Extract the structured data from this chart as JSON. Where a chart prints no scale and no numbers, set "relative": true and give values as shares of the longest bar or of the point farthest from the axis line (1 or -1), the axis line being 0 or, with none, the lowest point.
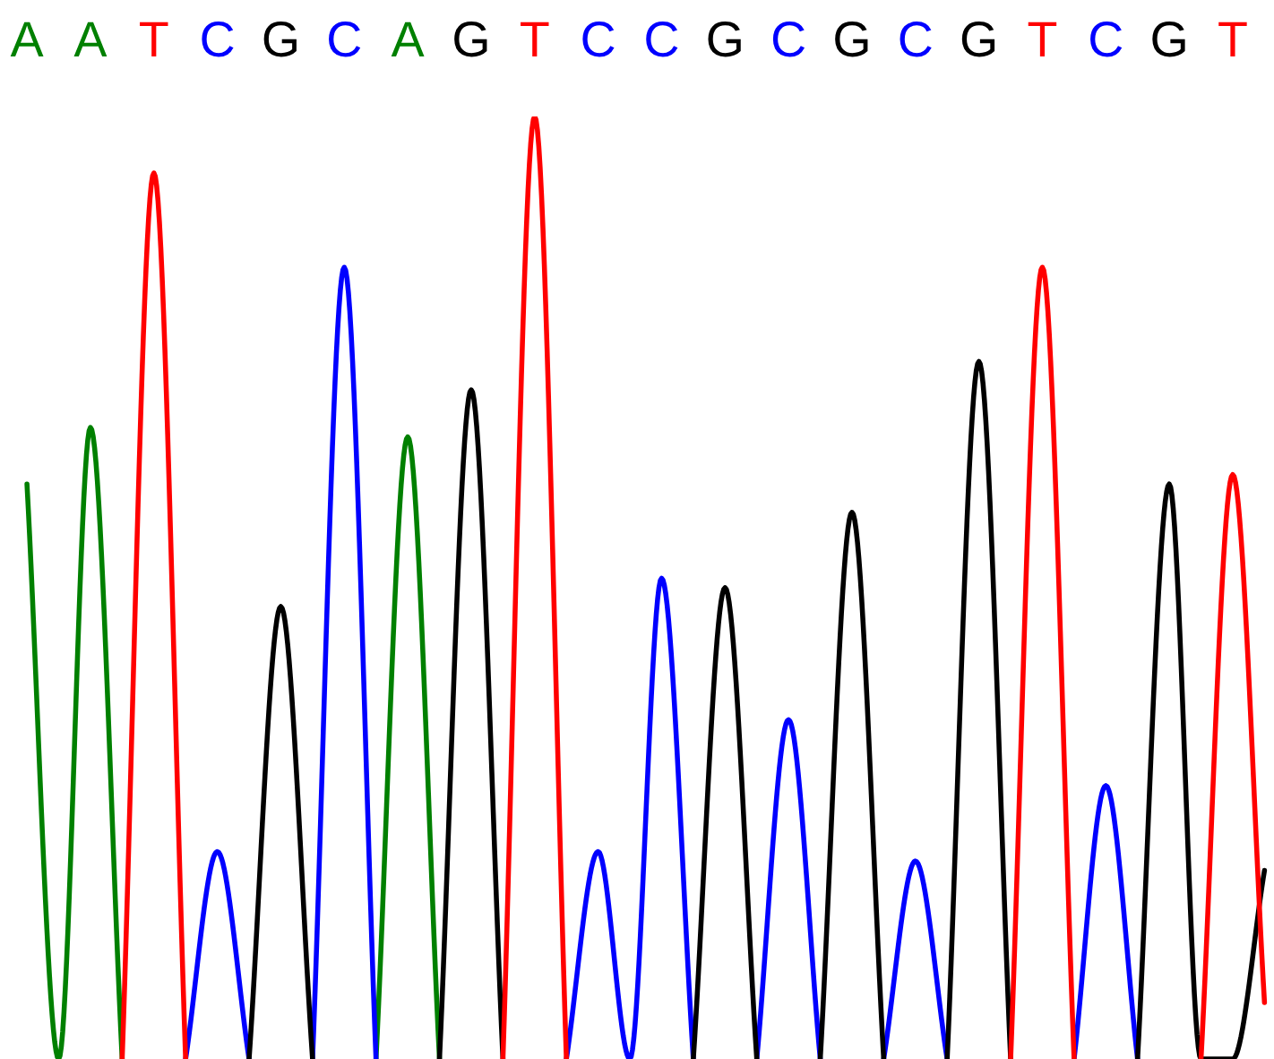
{
  "chart_data": {
    "type": "line",
    "relative": true,
    "categories": [
      "A",
      null,
      "A",
      null,
      "T",
      null,
      "C",
      null,
      "G",
      null,
      "C",
      null,
      "A",
      null,
      "G",
      null,
      "T",
      null,
      "C",
      null,
      "C",
      null,
      "G",
      null,
      "C",
      null,
      "G",
      null,
      "C",
      null,
      "G",
      null,
      "T",
      null,
      "C",
      null,
      "G",
      null,
      "T",
      null
    ],
    "series": [
      {
        "color": "#008000",
        "values": [
          0.61,
          0,
          0.67,
          0,
          null,
          null,
          null,
          null,
          null,
          null,
          null,
          0,
          0.66,
          0,
          null,
          null,
          null,
          null,
          null,
          null,
          null,
          null,
          null,
          null,
          null,
          null,
          null,
          null,
          null,
          null,
          null,
          null,
          null,
          null,
          null,
          null,
          null,
          null,
          null,
          null
        ]
      },
      {
        "color": "#0000ff",
        "values": [
          null,
          null,
          null,
          null,
          null,
          0,
          0.22,
          0,
          null,
          0,
          0.84,
          0,
          null,
          null,
          null,
          null,
          null,
          0,
          0.22,
          0,
          0.51,
          0,
          null,
          0,
          0.36,
          0,
          null,
          0,
          0.21,
          0,
          null,
          null,
          null,
          0,
          0.29,
          0,
          null,
          null,
          null,
          null
        ]
      },
      {
        "color": "#000000",
        "values": [
          null,
          null,
          null,
          null,
          null,
          null,
          null,
          0,
          0.48,
          0,
          null,
          null,
          null,
          0,
          0.71,
          0,
          null,
          null,
          null,
          null,
          null,
          0,
          0.5,
          0,
          null,
          0,
          0.58,
          0,
          null,
          0,
          0.74,
          0,
          null,
          null,
          null,
          0,
          0.61,
          0,
          0,
          0.2
        ]
      },
      {
        "color": "#ff0000",
        "values": [
          null,
          null,
          null,
          0,
          0.94,
          0,
          null,
          null,
          null,
          null,
          null,
          null,
          null,
          null,
          null,
          0,
          1,
          0,
          null,
          null,
          null,
          null,
          null,
          null,
          null,
          null,
          null,
          null,
          null,
          null,
          null,
          0,
          0.84,
          0,
          null,
          null,
          null,
          0,
          0.62,
          0.06
        ]
      }
    ]
  }
}
